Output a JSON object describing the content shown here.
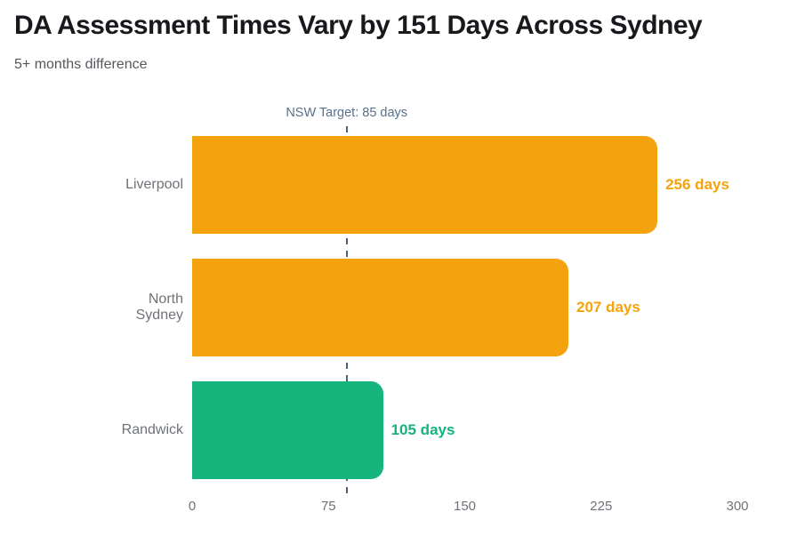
{
  "page": {
    "background": "#ffffff"
  },
  "chart_data": {
    "type": "bar",
    "orientation": "horizontal",
    "title": "DA Assessment Times Vary by 151 Days Across Sydney",
    "subtitle": "5+ months difference",
    "categories": [
      "Liverpool",
      "North Sydney",
      "Randwick"
    ],
    "category_lines": [
      [
        "Liverpool"
      ],
      [
        "North",
        "Sydney"
      ],
      [
        "Randwick"
      ]
    ],
    "values": [
      256,
      207,
      105
    ],
    "value_labels": [
      "256 days",
      "207 days",
      "105 days"
    ],
    "bar_colors": [
      "#F4A20D",
      "#F4A20D",
      "#14B47C"
    ],
    "unit": "days",
    "xlim": [
      0,
      300
    ],
    "x_ticks": [
      "0",
      "75",
      "150",
      "225",
      "300"
    ],
    "x_tick_values": [
      0,
      75,
      150,
      225,
      300
    ],
    "grid": false,
    "legend": null,
    "target_line": {
      "label": "NSW Target: 85 days",
      "value": 85
    }
  },
  "colors": {
    "title": "#17191c",
    "subtitle": "#54585d",
    "category_label": "#6e7278",
    "tick_label": "#6e7278",
    "target_text": "#55718b",
    "target_line": "#4a627a",
    "orange": "#F4A20D",
    "green": "#14B47C"
  }
}
